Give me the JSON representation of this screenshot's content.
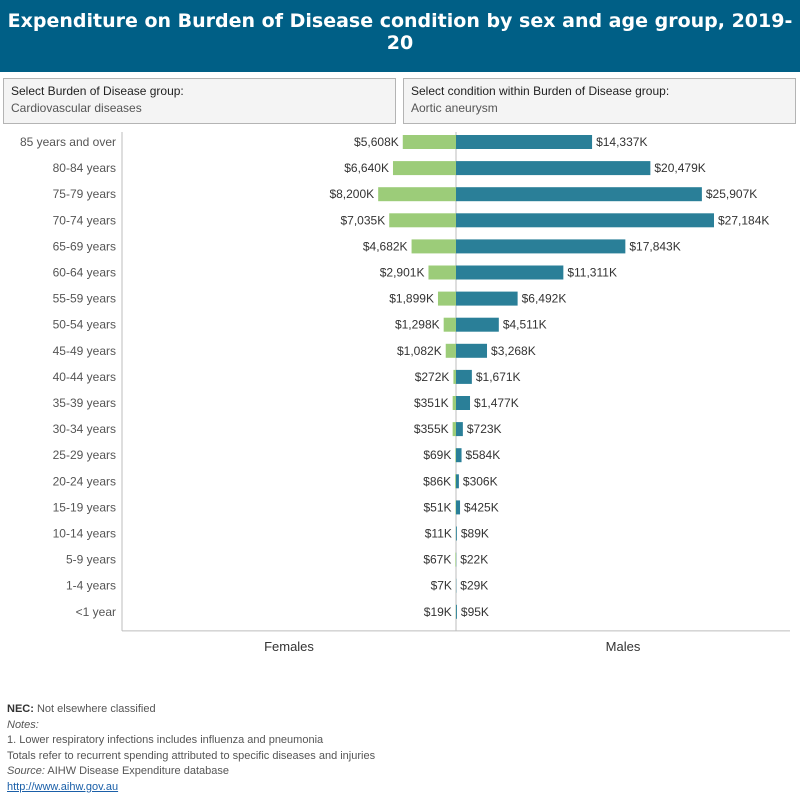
{
  "header": {
    "title": "Expenditure on Burden of Disease condition by sex and age group, 2019-20"
  },
  "selectors": {
    "group": {
      "label": "Select Burden of Disease group:",
      "value": "Cardiovascular diseases"
    },
    "condition": {
      "label": "Select condition within Burden of Disease group:",
      "value": "Aortic aneurysm"
    }
  },
  "colors": {
    "females": "#9ccc79",
    "males": "#2a7f98"
  },
  "chart_data": {
    "type": "bar",
    "orientation": "horizontal",
    "layout": "diverging",
    "categories": [
      "85 years and over",
      "80-84 years",
      "75-79 years",
      "70-74 years",
      "65-69 years",
      "60-64 years",
      "55-59 years",
      "50-54 years",
      "45-49 years",
      "40-44 years",
      "35-39 years",
      "30-34 years",
      "25-29 years",
      "20-24 years",
      "15-19 years",
      "10-14 years",
      "5-9 years",
      "1-4 years",
      "<1 year"
    ],
    "series": [
      {
        "name": "Females",
        "values": [
          5608,
          6640,
          8200,
          7035,
          4682,
          2901,
          1899,
          1298,
          1082,
          272,
          351,
          355,
          69,
          86,
          51,
          11,
          67,
          7,
          19
        ],
        "labels": [
          "$5,608K",
          "$6,640K",
          "$8,200K",
          "$7,035K",
          "$4,682K",
          "$2,901K",
          "$1,899K",
          "$1,298K",
          "$1,082K",
          "$272K",
          "$351K",
          "$355K",
          "$69K",
          "$86K",
          "$51K",
          "$11K",
          "$67K",
          "$7K",
          "$19K"
        ]
      },
      {
        "name": "Males",
        "values": [
          14337,
          20479,
          25907,
          27184,
          17843,
          11311,
          6492,
          4511,
          3268,
          1671,
          1477,
          723,
          584,
          306,
          425,
          89,
          22,
          29,
          95
        ],
        "labels": [
          "$14,337K",
          "$20,479K",
          "$25,907K",
          "$27,184K",
          "$17,843K",
          "$11,311K",
          "$6,492K",
          "$4,511K",
          "$3,268K",
          "$1,671K",
          "$1,477K",
          "$723K",
          "$584K",
          "$306K",
          "$425K",
          "$89K",
          "$22K",
          "$29K",
          "$95K"
        ]
      }
    ],
    "unit": "$K",
    "xlim": [
      -35000,
      35000
    ]
  },
  "footer": {
    "nec_key": "NEC:",
    "nec_text": " Not elsewhere classified",
    "notes_label": "Notes:",
    "note1": "1.  Lower respiratory infections includes influenza and pneumonia",
    "note2": "Totals refer to recurrent spending attributed to specific diseases and injuries",
    "source_label": "Source:",
    "source_text": " AIHW Disease Expenditure database",
    "link": "http://www.aihw.gov.au"
  }
}
